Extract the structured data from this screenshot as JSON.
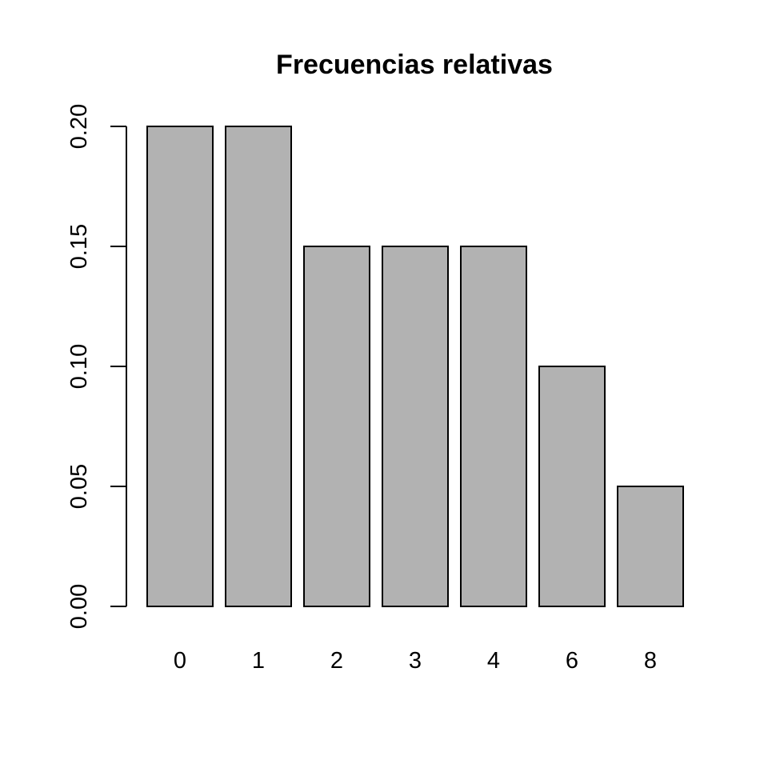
{
  "chart_data": {
    "type": "bar",
    "title": "Frecuencias relativas",
    "xlabel": "",
    "ylabel": "",
    "categories": [
      "0",
      "1",
      "2",
      "3",
      "4",
      "6",
      "8"
    ],
    "values": [
      0.2,
      0.2,
      0.15,
      0.15,
      0.15,
      0.1,
      0.05
    ],
    "ylim": [
      0,
      0.2
    ],
    "yticks": [
      "0.00",
      "0.05",
      "0.10",
      "0.15",
      "0.20"
    ],
    "grid": false,
    "colors": {
      "bar_fill": "#B2B2B2",
      "bar_stroke": "#000000",
      "axis": "#000000"
    }
  }
}
